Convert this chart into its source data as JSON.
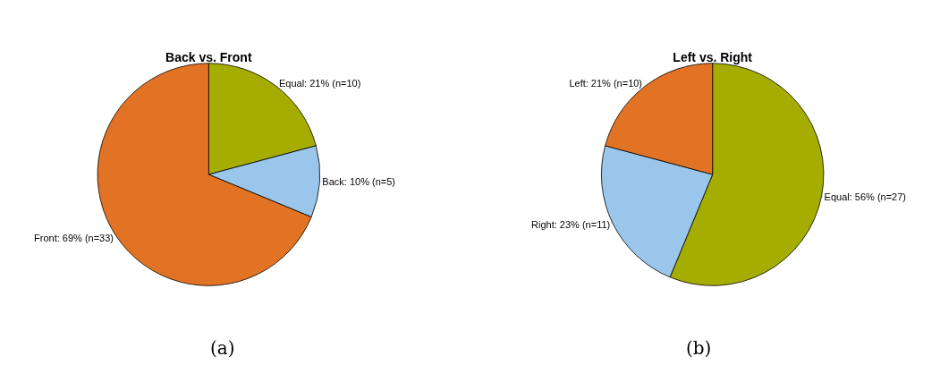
{
  "chart_data": [
    {
      "type": "pie",
      "title": "Back vs. Front",
      "categories": [
        "Equal",
        "Back",
        "Front"
      ],
      "values": [
        10,
        5,
        33
      ],
      "value_labels": [
        "21% (n=10)",
        "10% (n=5)",
        "69% (n=33)"
      ],
      "colors": [
        "#a5ae00",
        "#99c6ea",
        "#e37324"
      ],
      "annotations": [
        "(a)"
      ]
    },
    {
      "type": "pie",
      "title": "Left vs. Right",
      "categories": [
        "Equal",
        "Right",
        "Left"
      ],
      "values": [
        27,
        11,
        10
      ],
      "value_labels": [
        "56% (n=27)",
        "23% (n=11)",
        "21% (n=10)"
      ],
      "colors": [
        "#a5ae00",
        "#99c6ea",
        "#e37324"
      ],
      "annotations": [
        "(b)"
      ]
    }
  ]
}
